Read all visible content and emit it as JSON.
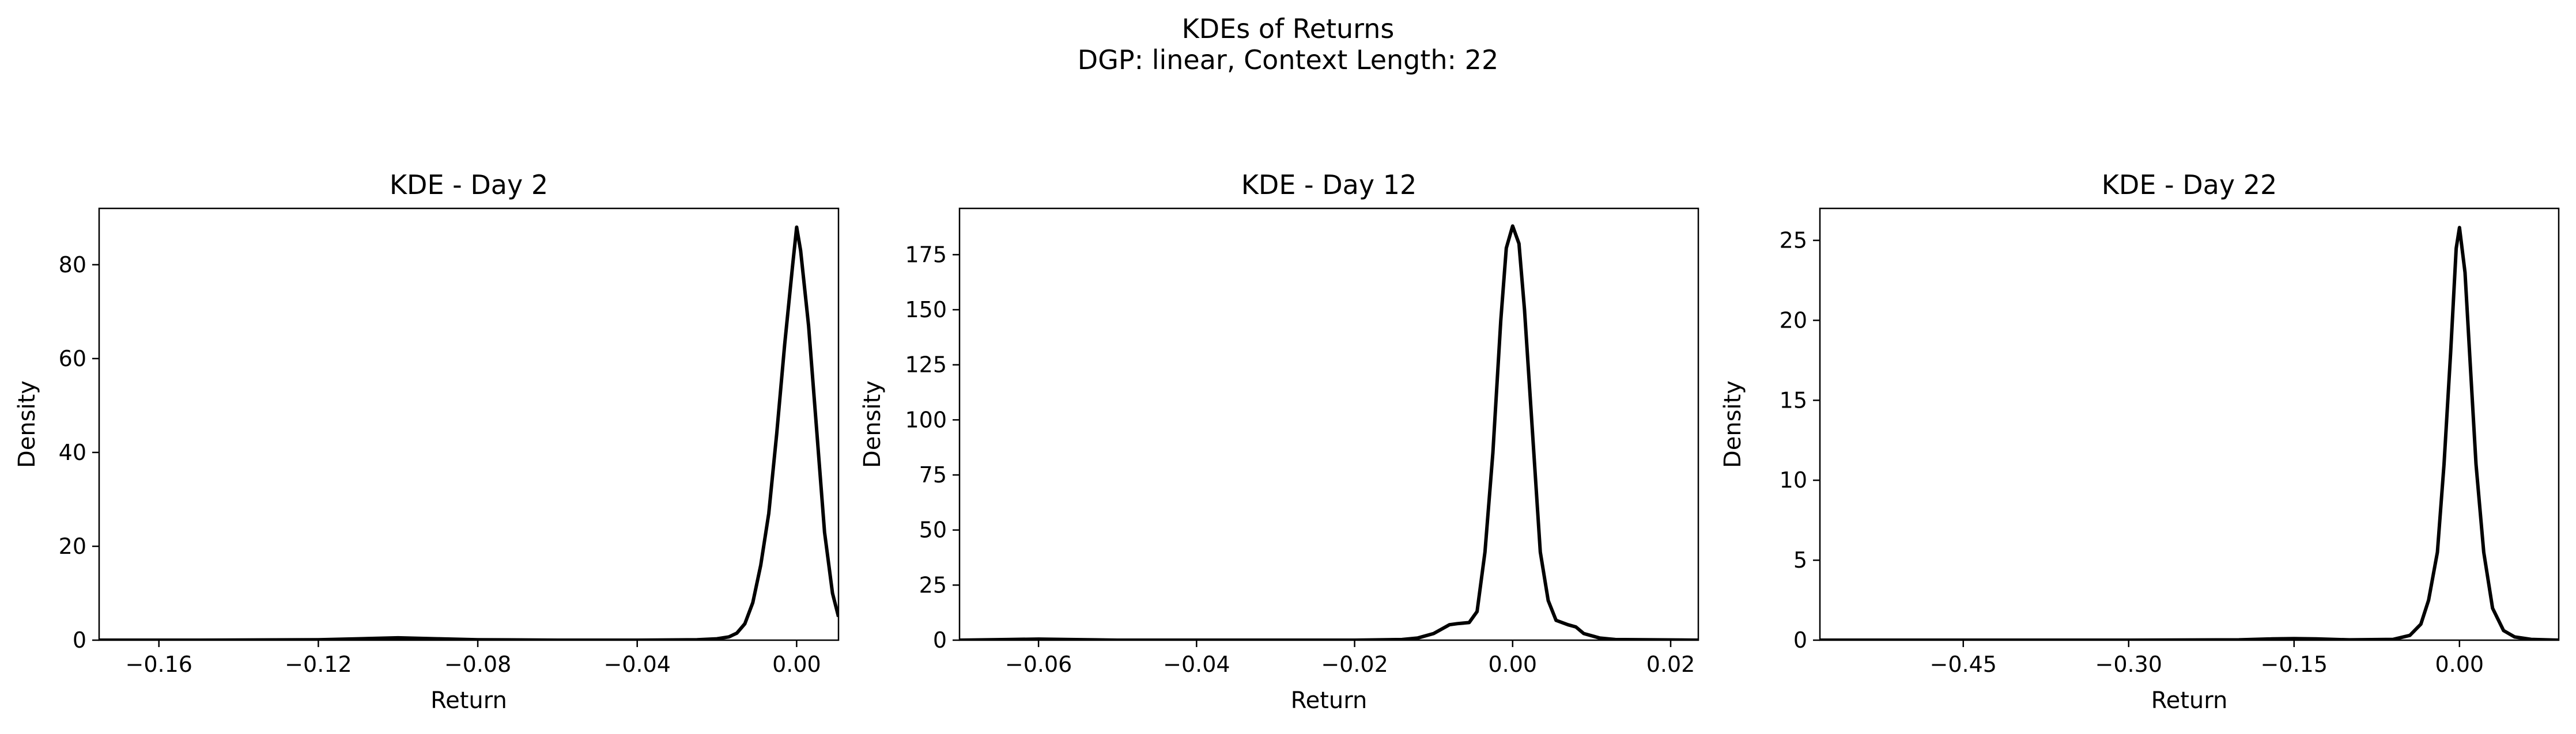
{
  "figure": {
    "suptitle_line1": "KDEs of Returns",
    "suptitle_line2": "DGP: linear, Context Length: 22"
  },
  "colors": {
    "line": "#000000",
    "axes": "#000000",
    "background": "#ffffff"
  },
  "chart_data": [
    {
      "type": "line",
      "title": "KDE - Day 2",
      "xlabel": "Return",
      "ylabel": "Density",
      "xlim": [
        -0.175,
        0.0105
      ],
      "ylim": [
        0,
        92
      ],
      "xticks": [
        -0.16,
        -0.12,
        -0.08,
        -0.04,
        0.0
      ],
      "xtick_labels": [
        "−0.16",
        "−0.12",
        "−0.08",
        "−0.04",
        "0.00"
      ],
      "yticks": [
        0,
        20,
        40,
        60,
        80
      ],
      "ytick_labels": [
        "0",
        "20",
        "40",
        "60",
        "80"
      ],
      "grid": false,
      "series": [
        {
          "x": [
            -0.175,
            -0.15,
            -0.12,
            -0.11,
            -0.1,
            -0.09,
            -0.08,
            -0.06,
            -0.04,
            -0.025,
            -0.02,
            -0.017,
            -0.015,
            -0.013,
            -0.011,
            -0.009,
            -0.007,
            -0.005,
            -0.003,
            -0.001,
            0.0,
            0.001,
            0.003,
            0.005,
            0.007,
            0.009,
            0.0105
          ],
          "y": [
            0,
            0,
            0.1,
            0.3,
            0.5,
            0.3,
            0.1,
            0,
            0,
            0.1,
            0.3,
            0.7,
            1.5,
            3.5,
            8,
            16,
            27,
            44,
            63,
            80,
            88,
            83,
            67,
            45,
            23,
            10,
            5
          ]
        }
      ]
    },
    {
      "type": "line",
      "title": "KDE - Day 12",
      "xlabel": "Return",
      "ylabel": "Density",
      "xlim": [
        -0.07,
        0.0235
      ],
      "ylim": [
        0,
        196
      ],
      "xticks": [
        -0.06,
        -0.04,
        -0.02,
        0.0,
        0.02
      ],
      "xtick_labels": [
        "−0.06",
        "−0.04",
        "−0.02",
        "0.00",
        "0.02"
      ],
      "yticks": [
        0,
        25,
        50,
        75,
        100,
        125,
        150,
        175
      ],
      "ytick_labels": [
        "0",
        "25",
        "50",
        "75",
        "100",
        "125",
        "150",
        "175"
      ],
      "grid": false,
      "series": [
        {
          "x": [
            -0.07,
            -0.064,
            -0.06,
            -0.056,
            -0.05,
            -0.04,
            -0.02,
            -0.014,
            -0.012,
            -0.01,
            -0.009,
            -0.008,
            -0.007,
            -0.0055,
            -0.0045,
            -0.0035,
            -0.0025,
            -0.0015,
            -0.0008,
            0.0,
            0.0008,
            0.0015,
            0.0025,
            0.0035,
            0.0045,
            0.0055,
            0.007,
            0.008,
            0.009,
            0.011,
            0.013,
            0.0235
          ],
          "y": [
            0,
            0.3,
            0.5,
            0.3,
            0,
            0,
            0,
            0.3,
            1,
            3,
            5,
            7,
            7.5,
            8,
            13,
            40,
            85,
            145,
            178,
            188,
            180,
            150,
            95,
            40,
            18,
            9,
            7,
            6,
            3,
            1,
            0.3,
            0
          ]
        }
      ]
    },
    {
      "type": "line",
      "title": "KDE - Day 22",
      "xlabel": "Return",
      "ylabel": "Density",
      "xlim": [
        -0.58,
        0.09
      ],
      "ylim": [
        0,
        27
      ],
      "xticks": [
        -0.45,
        -0.3,
        -0.15,
        0.0
      ],
      "xtick_labels": [
        "−0.45",
        "−0.30",
        "−0.15",
        "0.00"
      ],
      "yticks": [
        0,
        5,
        10,
        15,
        20,
        25
      ],
      "ytick_labels": [
        "0",
        "5",
        "10",
        "15",
        "20",
        "25"
      ],
      "grid": false,
      "series": [
        {
          "x": [
            -0.58,
            -0.45,
            -0.3,
            -0.2,
            -0.17,
            -0.15,
            -0.13,
            -0.1,
            -0.06,
            -0.045,
            -0.035,
            -0.028,
            -0.02,
            -0.014,
            -0.008,
            -0.003,
            0.0,
            0.005,
            0.01,
            0.015,
            0.022,
            0.03,
            0.04,
            0.05,
            0.065,
            0.09
          ],
          "y": [
            0,
            0,
            0,
            0.02,
            0.08,
            0.1,
            0.08,
            0.02,
            0.05,
            0.3,
            1,
            2.5,
            5.5,
            11,
            18,
            24.5,
            25.8,
            23,
            17,
            11,
            5.5,
            2,
            0.6,
            0.2,
            0.05,
            0
          ]
        }
      ]
    }
  ]
}
